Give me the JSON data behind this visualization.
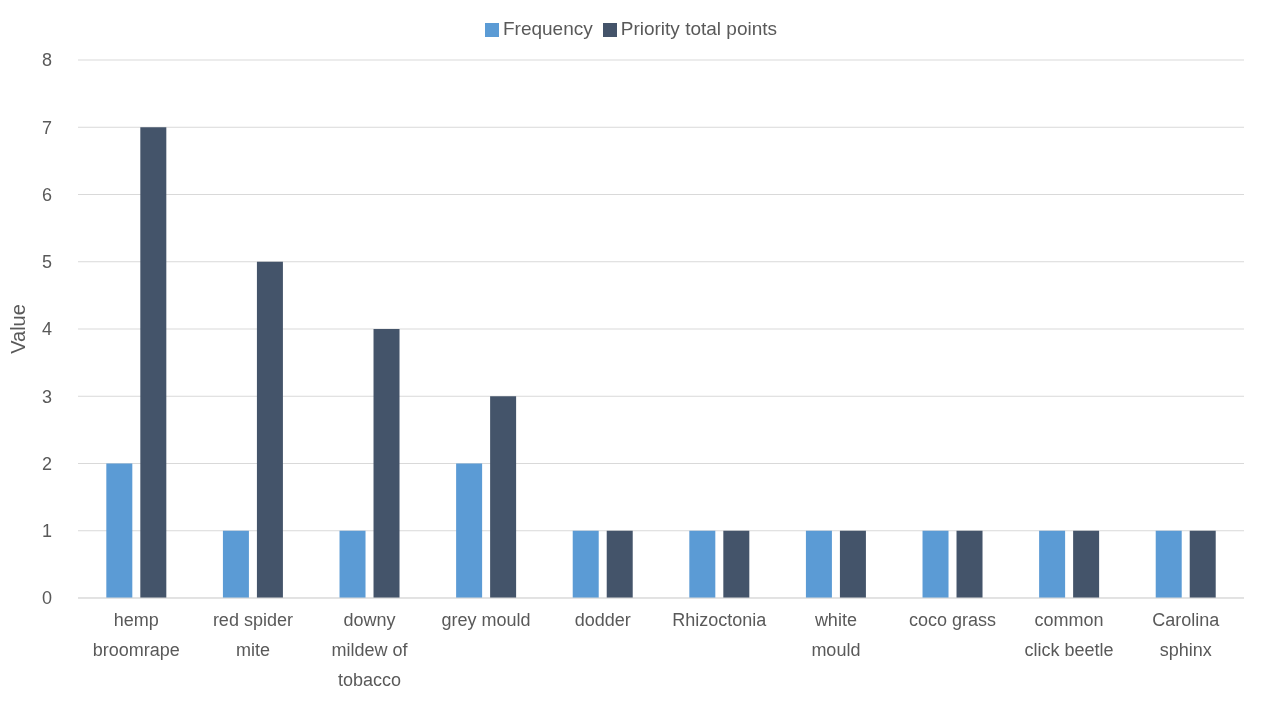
{
  "chart_data": {
    "type": "bar",
    "ylabel": "Value",
    "categories": [
      "hemp broomrape",
      "red spider mite",
      "downy mildew of tobacco",
      "grey mould",
      "dodder",
      "Rhizoctonia",
      "white mould",
      "coco grass",
      "common click beetle",
      "Carolina sphinx"
    ],
    "series": [
      {
        "name": "Frequency",
        "color": "#5b9bd5",
        "values": [
          2,
          1,
          1,
          2,
          1,
          1,
          1,
          1,
          1,
          1
        ]
      },
      {
        "name": "Priority total points",
        "color": "#44546a",
        "values": [
          7,
          5,
          4,
          3,
          1,
          1,
          1,
          1,
          1,
          1
        ]
      }
    ],
    "ylim": [
      0,
      8
    ],
    "yticks": [
      0,
      1,
      2,
      3,
      4,
      5,
      6,
      7,
      8
    ],
    "grid": "y",
    "legend": "top"
  }
}
